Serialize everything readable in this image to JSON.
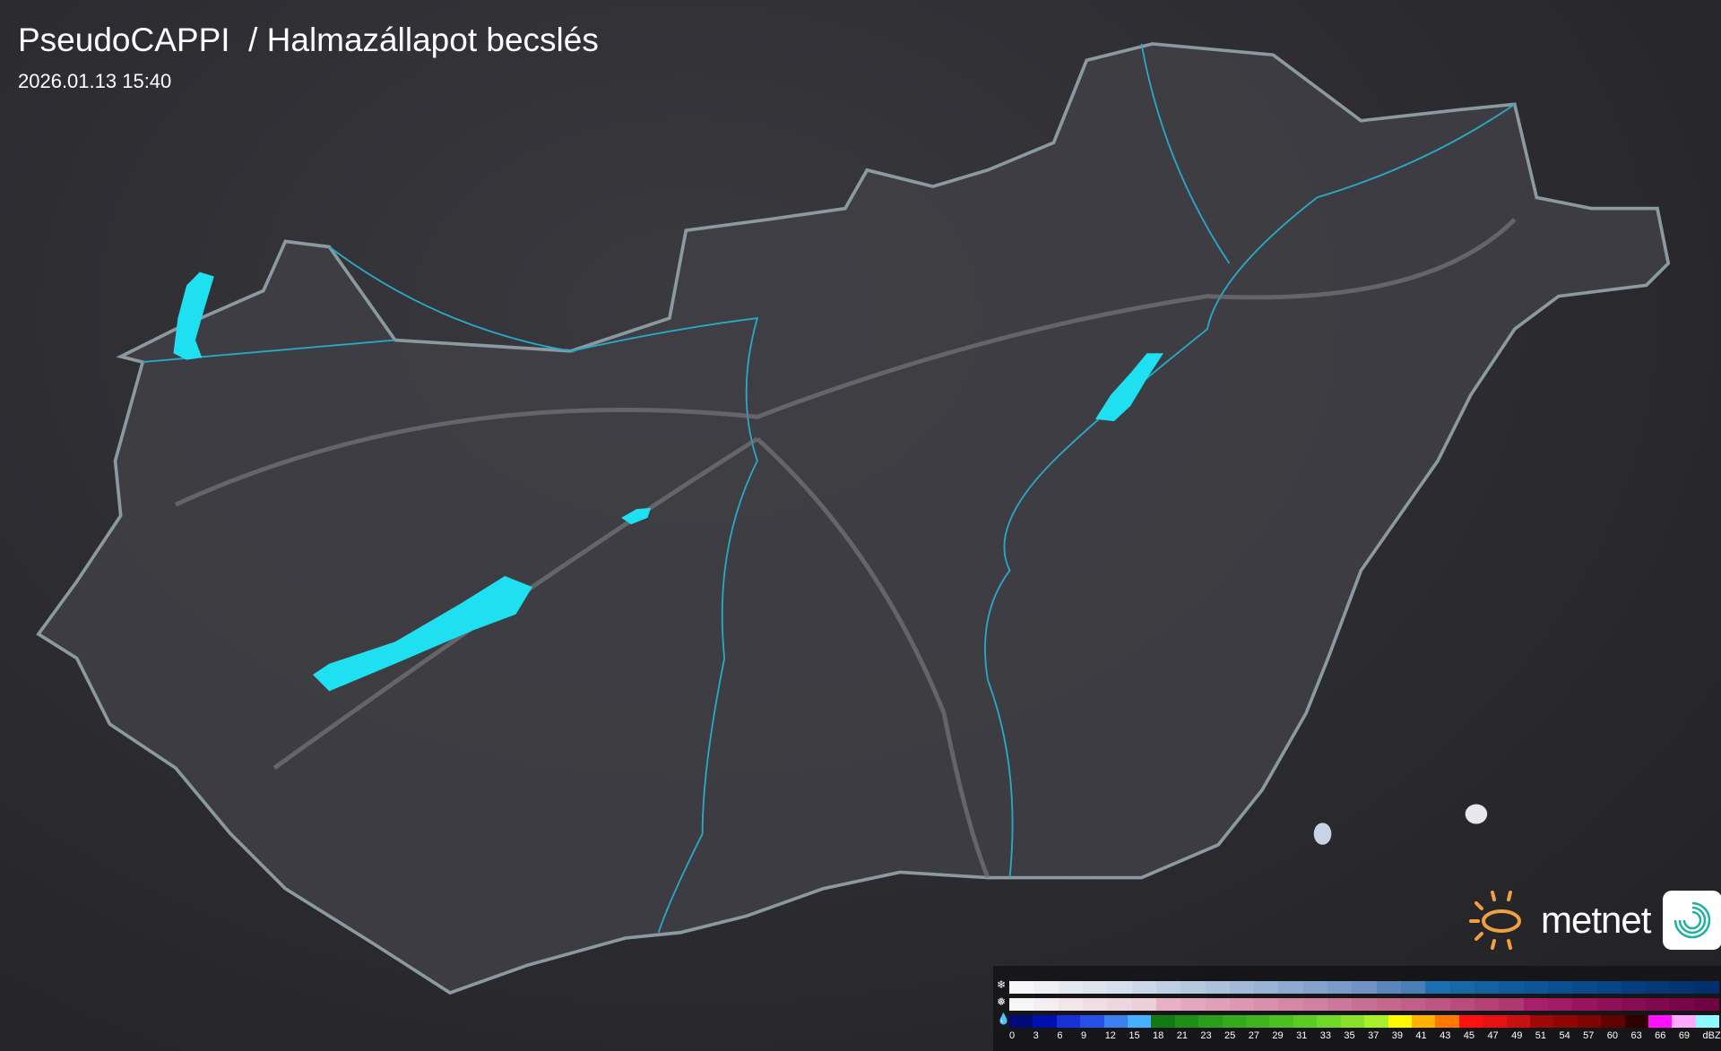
{
  "header": {
    "title": "PseudoCAPPI  / Halmazállapot becslés",
    "timestamp": "2026.01.13 15:40"
  },
  "brand": {
    "name": "metnet",
    "sun_color": "#f0a040",
    "app_icon": "spiral-icon"
  },
  "map": {
    "region": "Hungary",
    "lake_color": "#1ee0f0",
    "border_color": "#8a9aa0",
    "river_color": "#2aa8c8"
  },
  "legend": {
    "unit": "dBZ",
    "rows": [
      {
        "type": "snow",
        "icon": "snowflake-icon"
      },
      {
        "type": "mixed",
        "icon": "sleet-icon"
      },
      {
        "type": "rain",
        "icon": "raindrop-icon"
      }
    ],
    "labels": [
      "0",
      "3",
      "6",
      "9",
      "12",
      "15",
      "18",
      "21",
      "23",
      "25",
      "27",
      "29",
      "31",
      "33",
      "35",
      "37",
      "39",
      "41",
      "43",
      "45",
      "47",
      "49",
      "51",
      "54",
      "57",
      "60",
      "63",
      "66",
      "69",
      "dBZ"
    ],
    "snow_colors": [
      "#f6f6f8",
      "#eef0f4",
      "#e4e9f1",
      "#dde4ee",
      "#d6dfec",
      "#ccd8e8",
      "#c0d0e4",
      "#b6c8e0",
      "#acc2dc",
      "#a2bad8",
      "#98b2d4",
      "#8eaad0",
      "#84a2cc",
      "#7a9ac8",
      "#7092c4",
      "#5a86bc",
      "#4a7eb8",
      "#1a70b0",
      "#1668a8",
      "#1262a2",
      "#0e5c9c",
      "#0c5696",
      "#0a5090",
      "#084a8a",
      "#064484",
      "#053e7e",
      "#043878",
      "#033472",
      "#02306c"
    ],
    "mixed_colors": [
      "#f6f6f6",
      "#f4eef0",
      "#f2e6ea",
      "#f0dee4",
      "#eed6de",
      "#ecd0d8",
      "#e8b0c4",
      "#e4a8be",
      "#e0a0b8",
      "#dc98b2",
      "#d890ac",
      "#d488a6",
      "#d080a0",
      "#cc789a",
      "#c87094",
      "#c4688e",
      "#c06088",
      "#bc5682",
      "#b84c7c",
      "#b44276",
      "#b03870",
      "#a8206a",
      "#a01a64",
      "#98145e",
      "#901058",
      "#880c52",
      "#80084c",
      "#780646",
      "#700440"
    ],
    "rain_colors": [
      "#000a78",
      "#0010b0",
      "#1a30d8",
      "#2850e8",
      "#3c80f0",
      "#44b0ff",
      "#127a12",
      "#1e8e16",
      "#2a9e1a",
      "#34aa1c",
      "#40b41e",
      "#4cc020",
      "#5acc22",
      "#70d826",
      "#88e02a",
      "#a8ee2a",
      "#fff800",
      "#ffb000",
      "#ff7800",
      "#ff1010",
      "#e81010",
      "#c81010",
      "#a00808",
      "#900606",
      "#800404",
      "#600202",
      "#300000",
      "#ff10ff",
      "#ffa8ff",
      "#90f8ff"
    ]
  }
}
